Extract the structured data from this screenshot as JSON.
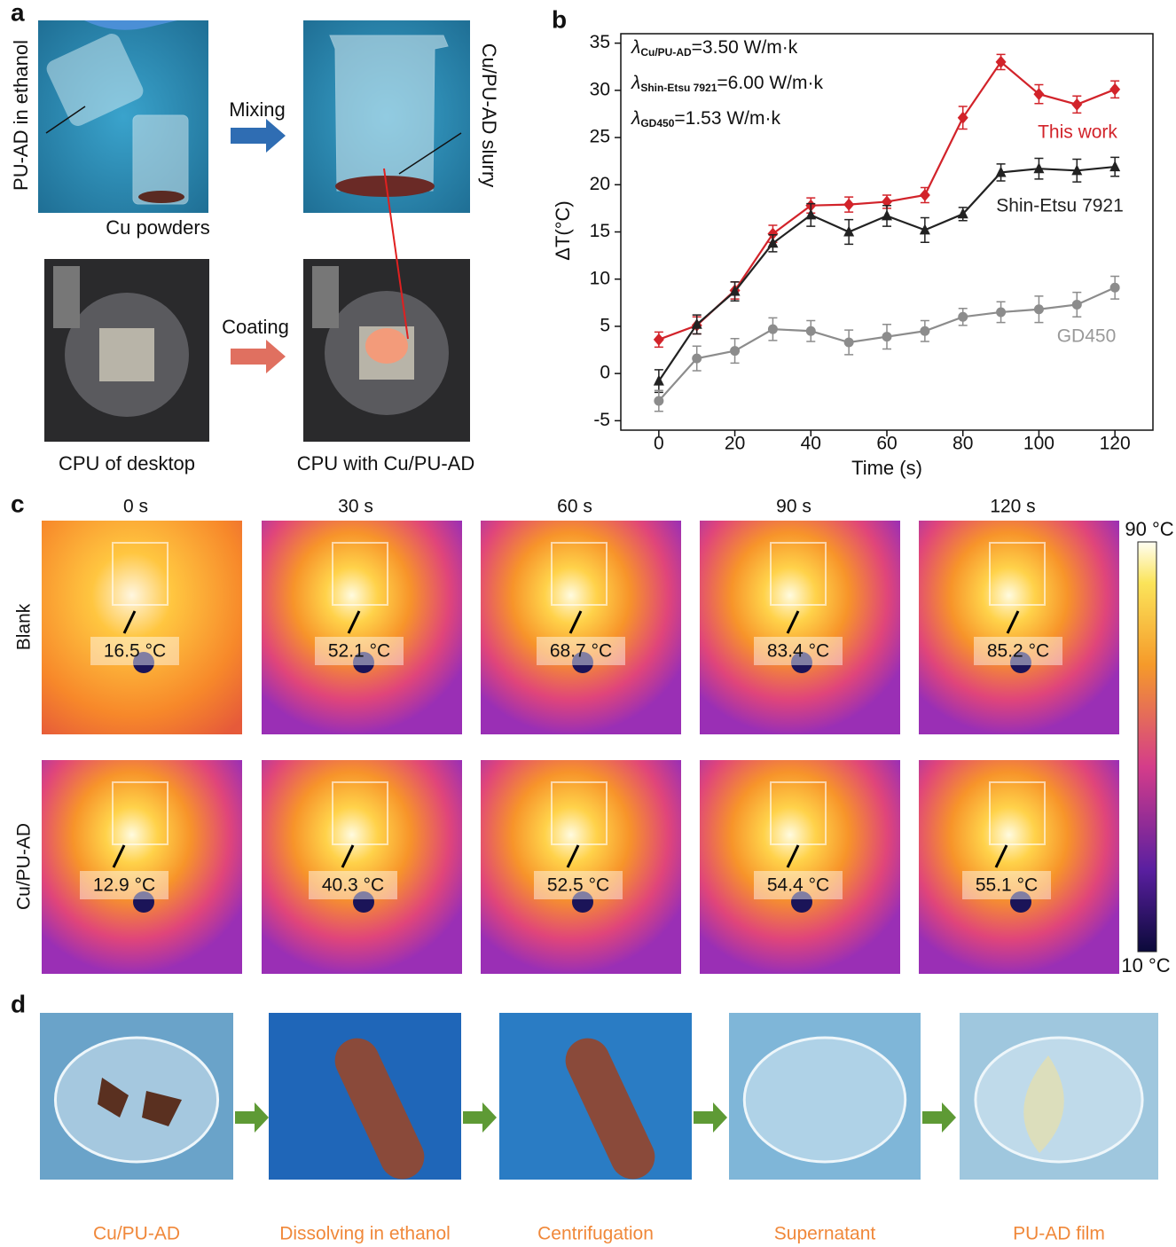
{
  "panel_labels": [
    "a",
    "b",
    "c",
    "d"
  ],
  "panel_a": {
    "steps": [
      "Mixing",
      "Coating"
    ],
    "labels": {
      "ethanol": "PU-AD in ethanol",
      "powders": "Cu powders",
      "slurry": "Cu/PU-AD slurry"
    },
    "captions": [
      "CPU of desktop",
      "CPU with Cu/PU-AD"
    ]
  },
  "chart_data": {
    "type": "line",
    "x_label": "Time (s)",
    "y_label": "ΔT(°C)",
    "annotations": [
      {
        "symbol": "λ",
        "subscript": "Cu/PU-AD",
        "text": "=3.50 W/m·k"
      },
      {
        "symbol": "λ",
        "subscript": "Shin-Etsu 7921",
        "text": "=6.00 W/m·k"
      },
      {
        "symbol": "λ",
        "subscript": "GD450",
        "text": "=1.53 W/m·k"
      }
    ],
    "x": [
      0,
      10,
      20,
      30,
      40,
      50,
      60,
      70,
      80,
      90,
      100,
      110,
      120
    ],
    "xlim": [
      -10,
      130
    ],
    "xticks": [
      0,
      20,
      40,
      60,
      80,
      100,
      120
    ],
    "ylim": [
      -6,
      36
    ],
    "yticks": [
      -5,
      0,
      5,
      10,
      15,
      20,
      25,
      30,
      35
    ],
    "series": [
      {
        "name": "This work",
        "color": "#d2232a",
        "marker": "diamond",
        "values": [
          3.6,
          5.1,
          8.8,
          14.8,
          17.8,
          17.9,
          18.2,
          18.9,
          27.1,
          33.0,
          29.6,
          28.5,
          30.1
        ],
        "errors": [
          0.8,
          0.9,
          0.9,
          0.9,
          0.8,
          0.8,
          0.7,
          0.8,
          1.2,
          0.8,
          1.0,
          0.9,
          0.9
        ]
      },
      {
        "name": "Shin-Etsu 7921",
        "color": "#222222",
        "marker": "triangle",
        "values": [
          -0.8,
          5.2,
          8.7,
          13.8,
          16.8,
          15.0,
          16.7,
          15.2,
          16.9,
          21.3,
          21.7,
          21.5,
          21.9
        ],
        "errors": [
          1.2,
          1.0,
          1.0,
          0.9,
          1.2,
          1.3,
          1.1,
          1.3,
          0.7,
          0.9,
          1.1,
          1.2,
          1.0
        ]
      },
      {
        "name": "GD450",
        "color": "#8c8c8c",
        "marker": "circle",
        "values": [
          -2.9,
          1.6,
          2.4,
          4.7,
          4.5,
          3.3,
          3.9,
          4.5,
          6.0,
          6.5,
          6.8,
          7.3,
          9.1
        ],
        "errors": [
          1.1,
          1.3,
          1.3,
          1.2,
          1.1,
          1.3,
          1.3,
          1.1,
          0.9,
          1.1,
          1.4,
          1.3,
          1.2
        ]
      }
    ]
  },
  "panel_c": {
    "times": [
      "0 s",
      "30 s",
      "60 s",
      "90 s",
      "120 s"
    ],
    "rows": [
      {
        "label": "Blank",
        "temps": [
          "16.5 °C",
          "52.1 °C",
          "68.7 °C",
          "83.4 °C",
          "85.2 °C"
        ]
      },
      {
        "label": "Cu/PU-AD",
        "temps": [
          "12.9 °C",
          "40.3 °C",
          "52.5 °C",
          "54.4 °C",
          "55.1 °C"
        ]
      }
    ],
    "colorbar": {
      "max": "90 °C",
      "min": "10 °C"
    }
  },
  "panel_d": {
    "captions": [
      "Cu/PU-AD",
      "Dissolving in ethanol",
      "Centrifugation",
      "Supernatant",
      "PU-AD film"
    ]
  }
}
